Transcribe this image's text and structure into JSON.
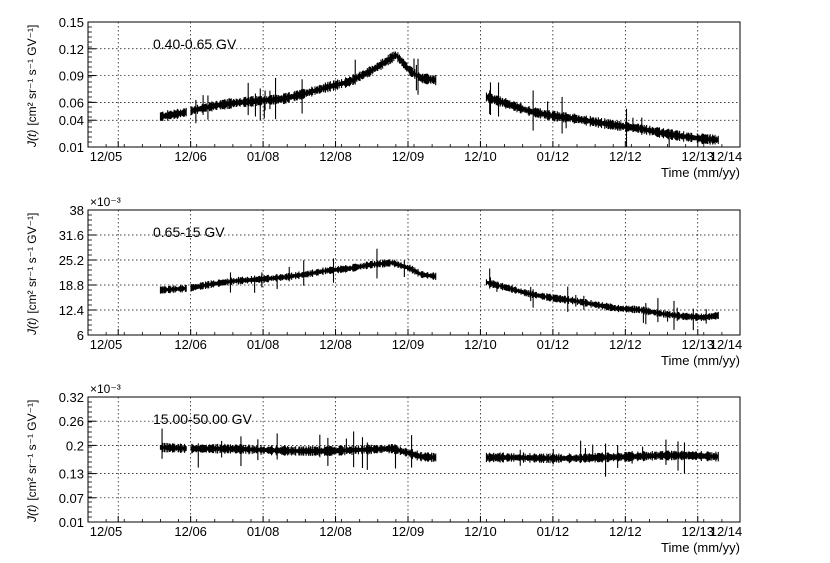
{
  "chart_data": [
    {
      "type": "scatter",
      "label": "0.40-0.65 GV",
      "xlabel": "Time (mm/yy)",
      "ylabel_main": "J(t)",
      "ylabel_units": "[cm² sr⁻¹ s⁻¹ GV⁻¹]",
      "y_multiplier": "",
      "xlim": [
        2005.5,
        2014.5
      ],
      "ylim": [
        0.01,
        0.15
      ],
      "x_ticks": [
        2005.917,
        2006.917,
        2007.917,
        2008.917,
        2009.917,
        2010.917,
        2011.917,
        2012.917,
        2013.917,
        2014.917
      ],
      "x_tick_labels": [
        "12/05",
        "12/06",
        "01/08",
        "12/08",
        "12/09",
        "12/10",
        "01/12",
        "12/12",
        "12/13",
        "12/14"
      ],
      "y_ticks": [
        0.01,
        0.04,
        0.06,
        0.09,
        0.12,
        0.15
      ],
      "y_tick_labels": [
        "0.01",
        "0.04",
        "0.06",
        "0.09",
        "0.12",
        "0.15"
      ],
      "grid": true,
      "profile": [
        [
          2006.5,
          0.044
        ],
        [
          2006.8,
          0.048
        ],
        [
          2007.0,
          0.052
        ],
        [
          2007.3,
          0.057
        ],
        [
          2007.6,
          0.06
        ],
        [
          2007.9,
          0.062
        ],
        [
          2008.2,
          0.064
        ],
        [
          2008.5,
          0.07
        ],
        [
          2008.8,
          0.077
        ],
        [
          2009.1,
          0.083
        ],
        [
          2009.4,
          0.095
        ],
        [
          2009.6,
          0.105
        ],
        [
          2009.75,
          0.113
        ],
        [
          2009.95,
          0.095
        ],
        [
          2010.1,
          0.087
        ],
        [
          2010.3,
          0.085
        ]
      ],
      "profile2": [
        [
          2011.0,
          0.066
        ],
        [
          2011.3,
          0.058
        ],
        [
          2011.6,
          0.05
        ],
        [
          2011.9,
          0.045
        ],
        [
          2012.2,
          0.042
        ],
        [
          2012.5,
          0.038
        ],
        [
          2012.8,
          0.034
        ],
        [
          2013.1,
          0.031
        ],
        [
          2013.4,
          0.026
        ],
        [
          2013.7,
          0.022
        ],
        [
          2014.0,
          0.019
        ],
        [
          2014.2,
          0.018
        ]
      ],
      "noise": 0.012
    },
    {
      "type": "scatter",
      "label": "0.65-15 GV",
      "xlabel": "Time (mm/yy)",
      "ylabel_main": "J(t)",
      "ylabel_units": "[cm² sr⁻¹ s⁻¹ GV⁻¹]",
      "y_multiplier": "×10⁻³",
      "xlim": [
        2005.5,
        2014.5
      ],
      "ylim": [
        6,
        38
      ],
      "x_ticks": [
        2005.917,
        2006.917,
        2007.917,
        2008.917,
        2009.917,
        2010.917,
        2011.917,
        2012.917,
        2013.917,
        2014.917
      ],
      "x_tick_labels": [
        "12/05",
        "12/06",
        "01/08",
        "12/08",
        "12/09",
        "12/10",
        "01/12",
        "12/12",
        "12/13",
        "12/14"
      ],
      "y_ticks": [
        6,
        12.4,
        18.8,
        25.2,
        31.6,
        38
      ],
      "y_tick_labels": [
        "6",
        "12.4",
        "18.8",
        "25.2",
        "31.6",
        "38"
      ],
      "grid": true,
      "profile": [
        [
          2006.5,
          17.5
        ],
        [
          2006.9,
          18.0
        ],
        [
          2007.2,
          19.0
        ],
        [
          2007.5,
          19.8
        ],
        [
          2007.9,
          20.3
        ],
        [
          2008.2,
          20.8
        ],
        [
          2008.5,
          21.5
        ],
        [
          2008.8,
          22.5
        ],
        [
          2009.1,
          23.0
        ],
        [
          2009.4,
          24.0
        ],
        [
          2009.7,
          24.5
        ],
        [
          2009.95,
          23.0
        ],
        [
          2010.1,
          21.5
        ],
        [
          2010.3,
          21.0
        ]
      ],
      "profile2": [
        [
          2011.0,
          19.5
        ],
        [
          2011.3,
          18.0
        ],
        [
          2011.6,
          16.5
        ],
        [
          2011.9,
          15.5
        ],
        [
          2012.2,
          14.8
        ],
        [
          2012.5,
          13.8
        ],
        [
          2012.8,
          12.8
        ],
        [
          2013.1,
          12.5
        ],
        [
          2013.4,
          11.5
        ],
        [
          2013.7,
          10.8
        ],
        [
          2014.0,
          10.5
        ],
        [
          2014.2,
          11.0
        ]
      ],
      "noise": 2.0
    },
    {
      "type": "scatter",
      "label": "15.00-50.00 GV",
      "xlabel": "Time (mm/yy)",
      "ylabel_main": "J(t)",
      "ylabel_units": "[cm² sr⁻¹ s⁻¹ GV⁻¹]",
      "y_multiplier": "×10⁻³",
      "xlim": [
        2005.5,
        2014.5
      ],
      "ylim": [
        0.01,
        0.32
      ],
      "x_ticks": [
        2005.917,
        2006.917,
        2007.917,
        2008.917,
        2009.917,
        2010.917,
        2011.917,
        2012.917,
        2013.917,
        2014.917
      ],
      "x_tick_labels": [
        "12/05",
        "12/06",
        "01/08",
        "12/08",
        "12/09",
        "12/10",
        "01/12",
        "12/12",
        "12/13",
        "12/14"
      ],
      "y_ticks": [
        0.01,
        0.07,
        0.13,
        0.2,
        0.26,
        0.32
      ],
      "y_tick_labels": [
        "0.01",
        "0.07",
        "0.13",
        "0.2",
        "0.26",
        "0.32"
      ],
      "grid": true,
      "profile": [
        [
          2006.5,
          0.195
        ],
        [
          2006.9,
          0.192
        ],
        [
          2007.2,
          0.192
        ],
        [
          2007.6,
          0.191
        ],
        [
          2008.0,
          0.188
        ],
        [
          2008.4,
          0.186
        ],
        [
          2008.8,
          0.186
        ],
        [
          2009.1,
          0.188
        ],
        [
          2009.4,
          0.19
        ],
        [
          2009.7,
          0.192
        ],
        [
          2009.95,
          0.18
        ],
        [
          2010.1,
          0.172
        ],
        [
          2010.3,
          0.17
        ]
      ],
      "profile2": [
        [
          2011.0,
          0.17
        ],
        [
          2011.4,
          0.17
        ],
        [
          2011.8,
          0.168
        ],
        [
          2012.2,
          0.168
        ],
        [
          2012.6,
          0.17
        ],
        [
          2013.0,
          0.172
        ],
        [
          2013.4,
          0.175
        ],
        [
          2013.8,
          0.175
        ],
        [
          2014.2,
          0.172
        ]
      ],
      "noise": 0.025
    }
  ]
}
